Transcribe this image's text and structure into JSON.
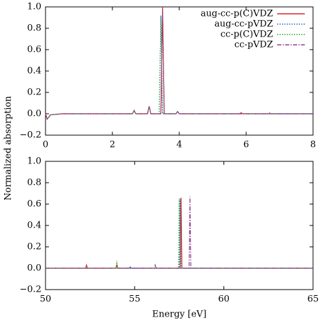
{
  "chart_data": [
    {
      "type": "line",
      "ylabel": "Normalized absorption",
      "legend": "upper right",
      "xlim": [
        0,
        8
      ],
      "xticks": [
        0,
        2,
        4,
        6,
        8
      ],
      "ylim": [
        -0.2,
        1.0
      ],
      "yticks": [
        {
          "value": -0.2,
          "label": "−0.2"
        },
        {
          "value": 0,
          "label": "0.0"
        },
        {
          "value": 0.2,
          "label": "0.2"
        },
        {
          "value": 0.4,
          "label": "0.4"
        },
        {
          "value": 0.6,
          "label": "0.6"
        },
        {
          "value": 0.8,
          "label": "0.8"
        },
        {
          "value": 1.0,
          "label": "1.0"
        }
      ],
      "series": [
        {
          "name": "aug-cc-p(C)VDZ",
          "color": "#d62728",
          "linestyle": "solid",
          "x": [
            0,
            0.05,
            0.15,
            0.5,
            2.6,
            2.65,
            2.7,
            3.05,
            3.1,
            3.15,
            3.45,
            3.5,
            3.55,
            3.9,
            3.95,
            4.0,
            5.8,
            5.85,
            5.9,
            8
          ],
          "values": [
            0,
            -0.05,
            -0.01,
            0,
            0,
            0.03,
            0,
            0,
            0.07,
            0,
            0,
            1.0,
            0,
            0,
            0.02,
            0,
            0,
            0.01,
            0,
            0
          ]
        },
        {
          "name": "aug-cc-pVDZ",
          "color": "#1f5fbf",
          "linestyle": "dotted",
          "x": [
            0,
            0.05,
            0.15,
            0.5,
            2.6,
            2.65,
            2.7,
            3.05,
            3.1,
            3.15,
            3.4,
            3.45,
            3.5,
            3.9,
            3.95,
            4.0,
            8
          ],
          "values": [
            0,
            -0.05,
            -0.01,
            0,
            0,
            0.03,
            0,
            0,
            0.07,
            0,
            0,
            0.92,
            0,
            0,
            0.02,
            0,
            0
          ]
        },
        {
          "name": "cc-p(C)VDZ",
          "color": "#2ca02c",
          "linestyle": "dotted",
          "x": [
            0,
            0.05,
            0.15,
            0.5,
            2.6,
            2.65,
            2.7,
            3.05,
            3.1,
            3.15,
            3.4,
            3.45,
            3.5,
            3.9,
            3.95,
            4.0,
            6.65,
            6.7,
            6.75,
            8
          ],
          "values": [
            0,
            -0.05,
            -0.01,
            0,
            0,
            0.03,
            0,
            0,
            0.07,
            0,
            0,
            0.9,
            0,
            0,
            0.02,
            0,
            0,
            0.01,
            0,
            0
          ]
        },
        {
          "name": "cc-pVDZ",
          "color": "#8e3c8e",
          "linestyle": "dashdot",
          "x": [
            0,
            0.05,
            0.15,
            0.5,
            2.6,
            2.65,
            2.7,
            3.05,
            3.1,
            3.15,
            3.45,
            3.5,
            3.55,
            3.9,
            3.95,
            4.0,
            8
          ],
          "values": [
            0,
            -0.05,
            -0.01,
            0,
            0,
            0.03,
            0,
            0,
            0.07,
            0,
            0,
            0.97,
            0,
            0,
            0.02,
            0,
            0
          ]
        }
      ]
    },
    {
      "type": "line",
      "xlabel": "Energy [eV]",
      "xlim": [
        50,
        65
      ],
      "xticks": [
        50,
        55,
        60,
        65
      ],
      "ylim": [
        -0.2,
        1.0
      ],
      "yticks": [
        {
          "value": -0.2,
          "label": "−0.2"
        },
        {
          "value": 0,
          "label": "0.0"
        },
        {
          "value": 0.2,
          "label": "0.2"
        },
        {
          "value": 0.4,
          "label": "0.4"
        },
        {
          "value": 0.6,
          "label": "0.6"
        },
        {
          "value": 0.8,
          "label": "0.8"
        },
        {
          "value": 1.0,
          "label": "1.0"
        }
      ],
      "series": [
        {
          "color": "#d62728",
          "linestyle": "solid",
          "x": [
            50,
            52.25,
            52.3,
            52.35,
            53.95,
            54,
            54.05,
            57.55,
            57.6,
            57.65,
            65
          ],
          "values": [
            0,
            0,
            0.03,
            0,
            0,
            0.03,
            0,
            0,
            0.66,
            0,
            0
          ]
        },
        {
          "color": "#1f5fbf",
          "linestyle": "dotted",
          "x": [
            50,
            54.7,
            54.75,
            54.8,
            57.5,
            57.55,
            57.6,
            65
          ],
          "values": [
            0,
            0,
            0.02,
            0,
            0,
            0.65,
            0,
            0
          ]
        },
        {
          "color": "#2ca02c",
          "linestyle": "dotted",
          "x": [
            50,
            53.95,
            54,
            54.05,
            57.45,
            57.5,
            57.55,
            65
          ],
          "values": [
            0,
            0,
            0.07,
            0,
            0,
            0.65,
            0,
            0
          ]
        },
        {
          "color": "#8e3c8e",
          "linestyle": "dashdot",
          "x": [
            50,
            56.1,
            56.15,
            56.2,
            58.05,
            58.1,
            58.15,
            65
          ],
          "values": [
            0,
            0,
            0.03,
            0,
            0,
            0.67,
            0,
            0
          ]
        }
      ]
    }
  ]
}
